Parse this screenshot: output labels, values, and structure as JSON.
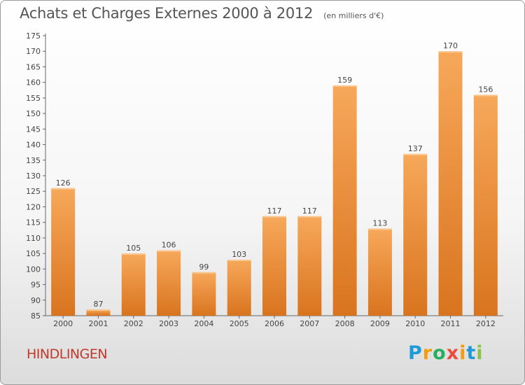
{
  "title": "Achats et Charges Externes 2000 à 2012",
  "unit": "(en milliers d'€)",
  "town": "HINDLINGEN",
  "logo": {
    "text": "Proxiti",
    "letters": [
      "P",
      "r",
      "o",
      "x",
      "i",
      "t",
      "i"
    ],
    "colors": [
      "#1f9ad6",
      "#f39c12",
      "#27ae60",
      "#e74c3c",
      "#f39c12",
      "#1f9ad6",
      "#8bc34a"
    ]
  },
  "colors": {
    "bar_top": "#f7a85a",
    "bar_bottom": "#d9741e",
    "axis": "#666666",
    "title": "#555555",
    "town": "#c0392b"
  },
  "chart_data": {
    "type": "bar",
    "title": "Achats et Charges Externes 2000 à 2012",
    "subtitle": "(en milliers d'€)",
    "categories": [
      "2000",
      "2001",
      "2002",
      "2003",
      "2004",
      "2005",
      "2006",
      "2007",
      "2008",
      "2009",
      "2010",
      "2011",
      "2012"
    ],
    "values": [
      126,
      87,
      105,
      106,
      99,
      103,
      117,
      117,
      159,
      113,
      137,
      170,
      156
    ],
    "ylim": [
      85,
      175
    ],
    "yticks": [
      85,
      90,
      95,
      100,
      105,
      110,
      115,
      120,
      125,
      130,
      135,
      140,
      145,
      150,
      155,
      160,
      165,
      170,
      175
    ],
    "grid": false,
    "data_labels": true
  }
}
